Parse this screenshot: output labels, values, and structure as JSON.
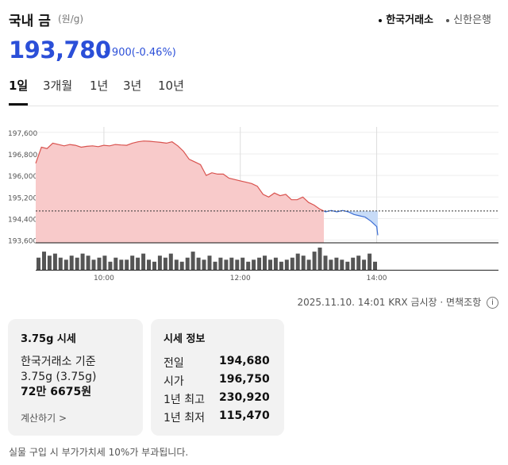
{
  "header": {
    "title": "국내 금",
    "unit": "(원/g)",
    "sources": [
      {
        "label": "한국거래소",
        "active": true
      },
      {
        "label": "신한은행",
        "active": false
      }
    ]
  },
  "price": {
    "value": "193,780",
    "change": "900",
    "change_pct": "(-0.46%)",
    "direction_icon": "triangle-down-icon",
    "color": "#2b4fd8"
  },
  "tabs": [
    {
      "label": "1일",
      "active": true
    },
    {
      "label": "3개월",
      "active": false
    },
    {
      "label": "1년",
      "active": false
    },
    {
      "label": "3년",
      "active": false
    },
    {
      "label": "10년",
      "active": false
    }
  ],
  "chart_data": {
    "type": "area",
    "x_type": "time",
    "y_ticks": [
      197600,
      196800,
      196000,
      195200,
      194400,
      193600
    ],
    "y_tick_labels": [
      "197,600",
      "196,800",
      "196,000",
      "195,200",
      "194,400",
      "193,600"
    ],
    "ylim": [
      193500,
      197800
    ],
    "x_ticks": [
      "10:00",
      "12:00",
      "14:00"
    ],
    "x_range": [
      "09:00",
      "14:01"
    ],
    "reference_line": 194680,
    "grid": true,
    "colors": {
      "up_fill": "#f8caca",
      "up_line": "#d9534f",
      "down_fill": "#c7dbf7",
      "down_line": "#3d6fd6",
      "volume": "#555555"
    },
    "series": [
      {
        "x": [
          "09:00",
          "09:05",
          "09:10",
          "09:15",
          "09:20",
          "09:25",
          "09:30",
          "09:35",
          "09:40",
          "09:45",
          "09:50",
          "09:55",
          "10:00",
          "10:05",
          "10:10",
          "10:15",
          "10:20",
          "10:25",
          "10:30",
          "10:35",
          "10:40",
          "10:45",
          "10:50",
          "10:55",
          "11:00",
          "11:05",
          "11:10",
          "11:15",
          "11:20",
          "11:25",
          "11:30",
          "11:35",
          "11:40",
          "11:45",
          "11:50",
          "11:55",
          "12:00",
          "12:05",
          "12:10",
          "12:15",
          "12:20",
          "12:25",
          "12:30",
          "12:35",
          "12:40",
          "12:45",
          "12:50",
          "12:55",
          "13:00",
          "13:05",
          "13:10",
          "13:15",
          "13:20",
          "13:25",
          "13:30",
          "13:35",
          "13:40",
          "13:45",
          "13:50",
          "13:55",
          "14:00",
          "14:01"
        ],
        "values": [
          196450,
          197050,
          197000,
          197200,
          197150,
          197100,
          197150,
          197120,
          197050,
          197080,
          197100,
          197070,
          197120,
          197100,
          197150,
          197130,
          197120,
          197200,
          197250,
          197280,
          197270,
          197250,
          197230,
          197200,
          197250,
          197100,
          196900,
          196600,
          196500,
          196400,
          196000,
          196100,
          196050,
          196050,
          195900,
          195850,
          195800,
          195750,
          195700,
          195600,
          195300,
          195200,
          195350,
          195250,
          195300,
          195100,
          195100,
          195200,
          195000,
          194900,
          194750,
          194650,
          194700,
          194650,
          194700,
          194650,
          194550,
          194500,
          194450,
          194300,
          194100,
          193780
        ]
      }
    ],
    "volume": [
      6,
      9,
      7,
      8,
      6,
      5,
      7,
      6,
      8,
      7,
      5,
      6,
      7,
      4,
      6,
      5,
      5,
      7,
      6,
      8,
      5,
      4,
      7,
      6,
      8,
      5,
      4,
      6,
      9,
      6,
      5,
      7,
      4,
      6,
      5,
      6,
      5,
      6,
      4,
      5,
      6,
      7,
      5,
      6,
      4,
      5,
      6,
      8,
      7,
      5,
      9,
      11,
      7,
      5,
      6,
      5,
      4,
      6,
      7,
      5,
      8,
      4
    ]
  },
  "timestamp": "2025.11.10. 14:01 KRX 금시장 · 면책조항",
  "cards": {
    "spot": {
      "title": "3.75g 시세",
      "line1": "한국거래소 기준",
      "line2": "3.75g (3.75g)",
      "line3": "72만 6675원",
      "link": "계산하기 >"
    },
    "info": {
      "title": "시세 정보",
      "rows": [
        {
          "label": "전일",
          "value": "194,680"
        },
        {
          "label": "시가",
          "value": "196,750"
        },
        {
          "label": "1년 최고",
          "value": "230,920"
        },
        {
          "label": "1년 최저",
          "value": "115,470"
        }
      ]
    }
  },
  "bottom_note": "실물 구입 시 부가가치세 10%가 부과됩니다."
}
